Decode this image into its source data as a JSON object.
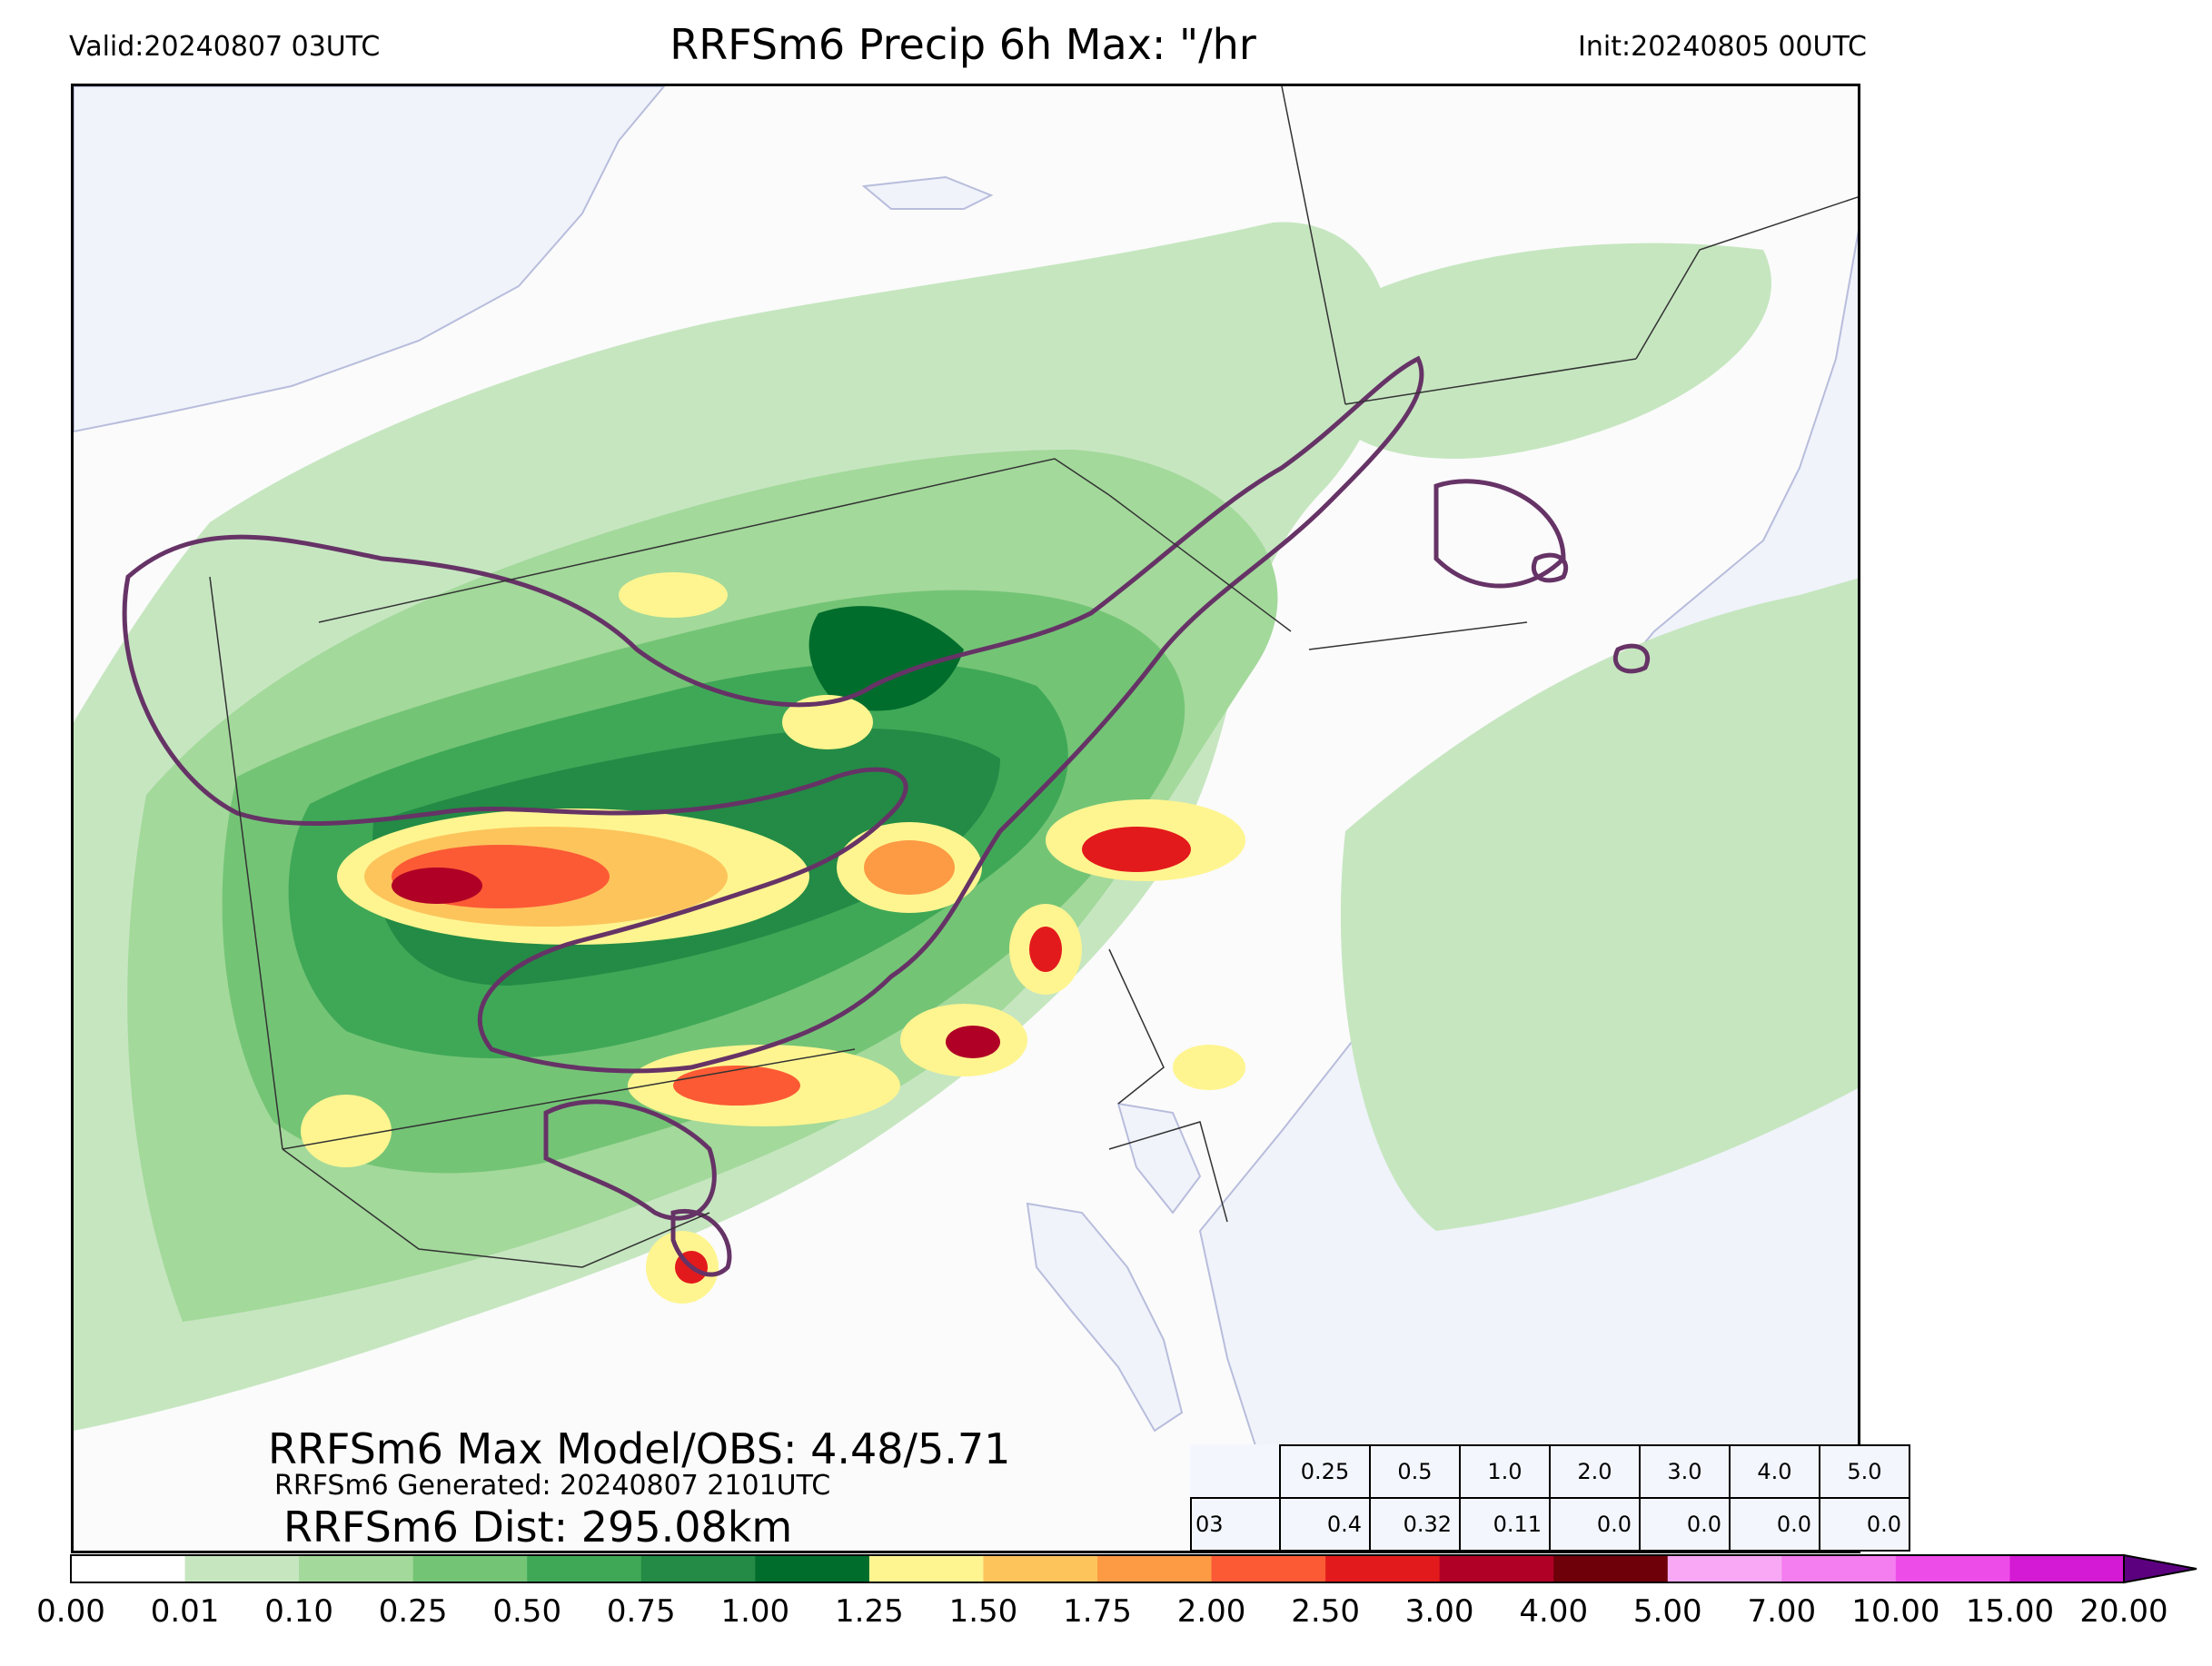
{
  "header": {
    "valid": "Valid:20240807 03UTC",
    "title": "RRFSm6 Precip 6h Max: \"/hr",
    "init": "Init:20240805 00UTC"
  },
  "stats": {
    "max_model_obs": "RRFSm6 Max Model/OBS: 4.48/5.71",
    "generated": "RRFSm6 Generated: 20240807 2101UTC",
    "distance": "RRFSm6 Dist: 295.08km"
  },
  "threshold_table": {
    "thresholds": [
      "0.25",
      "0.5",
      "1.0",
      "2.0",
      "3.0",
      "4.0",
      "5.0"
    ],
    "hour": "03",
    "values": [
      "0.4",
      "0.32",
      "0.11",
      "0.0",
      "0.0",
      "0.0",
      "0.0"
    ]
  },
  "colorbar": {
    "ticks": [
      "0.00",
      "0.01",
      "0.10",
      "0.25",
      "0.50",
      "0.75",
      "1.00",
      "1.25",
      "1.50",
      "1.75",
      "2.00",
      "2.50",
      "3.00",
      "4.00",
      "5.00",
      "7.00",
      "10.00",
      "15.00",
      "20.00"
    ],
    "colors": [
      "#ffffff",
      "#c6e6c0",
      "#a3d99b",
      "#74c476",
      "#3fa857",
      "#238b45",
      "#006d2c",
      "#fef590",
      "#fdc45c",
      "#fd9a44",
      "#fb5a35",
      "#e31a1c",
      "#b00026",
      "#6e0009",
      "#f8a8f4",
      "#f47df0",
      "#ee4ce9",
      "#d41ad4",
      "#9a0fcc"
    ],
    "extend_color": "#5c0080"
  },
  "map_colors": {
    "background": "#fbfbfb",
    "water": "#f0f3fa",
    "obs_contour": "#663366",
    "border": "#333333"
  }
}
